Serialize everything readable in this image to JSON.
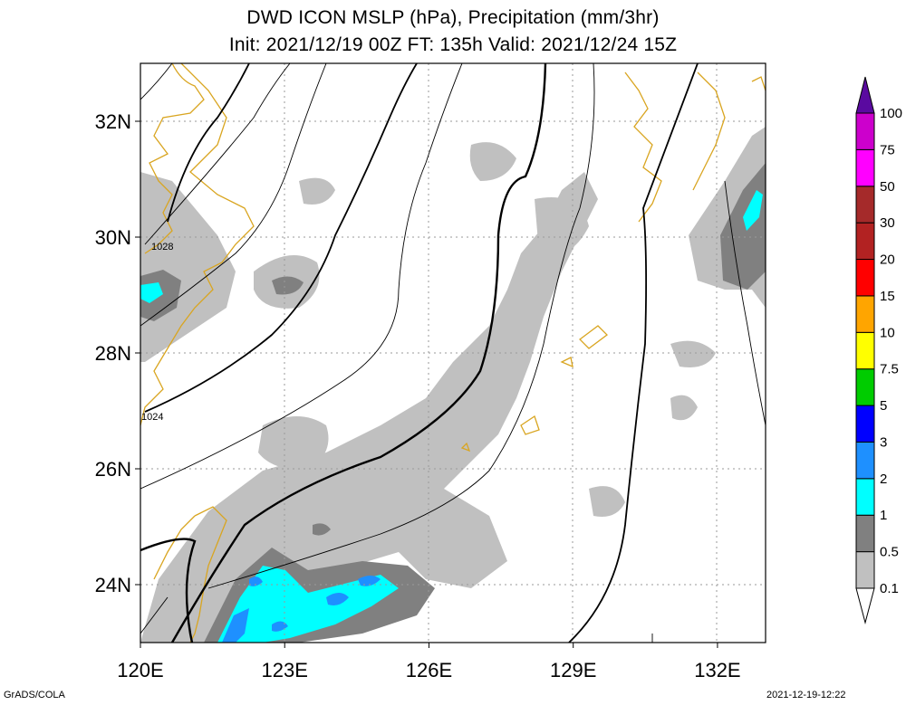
{
  "header": {
    "title": "DWD ICON MSLP (hPa), Precipitation (mm/3hr)",
    "subtitle": "Init: 2021/12/19 00Z  FT: 135h  Valid: 2021/12/24 15Z"
  },
  "footer": {
    "left": "GrADS/COLA",
    "right": "2021-12-19-12:22"
  },
  "chart_data": {
    "type": "heatmap",
    "title": "DWD ICON MSLP (hPa), Precipitation (mm/3hr)",
    "subtitle": "Init: 2021/12/19 00Z  FT: 135h  Valid: 2021/12/24 15Z",
    "x_axis": {
      "range": [
        120,
        133
      ],
      "ticks": [
        120,
        123,
        126,
        129,
        132
      ],
      "tick_labels": [
        "120E",
        "123E",
        "126E",
        "129E",
        "132E"
      ]
    },
    "y_axis": {
      "range": [
        23,
        33
      ],
      "ticks": [
        24,
        26,
        28,
        30,
        32
      ],
      "tick_labels": [
        "24N",
        "26N",
        "28N",
        "30N",
        "32N"
      ]
    },
    "grid": true,
    "isobar_labels": [
      "1028",
      "1024"
    ],
    "colorbar": {
      "levels": [
        "0.1",
        "0.5",
        "1",
        "2",
        "3",
        "5",
        "7.5",
        "10",
        "15",
        "20",
        "30",
        "50",
        "75",
        "100"
      ],
      "colors": [
        "#c0c0c0",
        "#808080",
        "#00ffff",
        "#1e90ff",
        "#0000ff",
        "#00cc00",
        "#ffff00",
        "#ffa500",
        "#ff0000",
        "#b22222",
        "#a52a2a",
        "#ff00ff",
        "#cc00cc",
        "#9400d3",
        "#5a0aa0"
      ]
    },
    "colors": {
      "coastline": "#d9a520",
      "isobar": "#000000",
      "precip_light": "#c0c0c0",
      "precip_medium": "#808080",
      "precip_heavy": "#00ffff",
      "precip_very_heavy": "#1e90ff"
    }
  }
}
